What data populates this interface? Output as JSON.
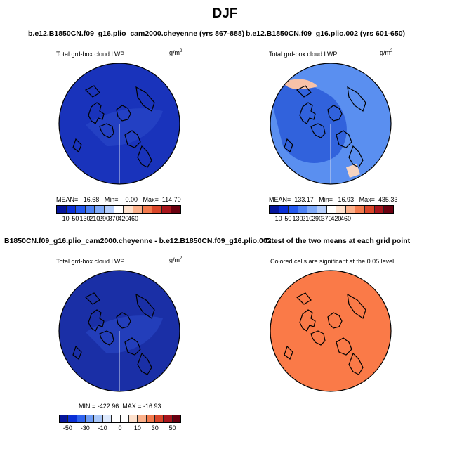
{
  "title": "DJF",
  "panels": [
    {
      "title": "b.e12.B1850CN.f09_g16.plio_cam2000.cheyenne (yrs 867-888)",
      "subtitle": "Total grd-box cloud LWP",
      "units": "g/m",
      "units_exp": "2",
      "stats": "MEAN=   16.68   Min=    0.00   Max=  114.70",
      "colorbar_labels": [
        "10",
        "50",
        "130",
        "210",
        "290",
        "370",
        "420",
        "460"
      ],
      "fill": "#1933bb"
    },
    {
      "title": "b.e12.B1850CN.f09_g16.plio.002 (yrs 601-650)",
      "subtitle": "Total grd-box cloud LWP",
      "units": "g/m",
      "units_exp": "2",
      "stats": "MEAN=  133.17   Min=   16.93   Max=  435.33",
      "colorbar_labels": [
        "10",
        "50",
        "130",
        "210",
        "290",
        "370",
        "420",
        "460"
      ],
      "fill": "#5a8ff0"
    },
    {
      "title": "B1850CN.f09_g16.plio_cam2000.cheyenne - b.e12.B1850CN.f09_g16.plio.002",
      "subtitle": "Total grd-box cloud LWP",
      "units": "g/m",
      "units_exp": "2",
      "stats": "MIN = -422.96  MAX = -16.93",
      "colorbar_labels": [
        "-50",
        "-30",
        "-10",
        "0",
        "10",
        "30",
        "50"
      ],
      "fill": "#1a2fa6"
    },
    {
      "title": "T-test of the two means at each grid point",
      "subtitle": "Colored cells are significant at the 0.05 level",
      "fill": "#fa7a48"
    }
  ],
  "colors": {
    "seq": [
      "#05159b",
      "#0a2fd6",
      "#2358ee",
      "#4d82f4",
      "#7faaf8",
      "#b3cdfb",
      "#ffffff",
      "#fde1cd",
      "#fbb08a",
      "#f27a4d",
      "#d9462a",
      "#a8151c",
      "#6a0010"
    ],
    "div": [
      "#05159b",
      "#0a2fd6",
      "#2f63ee",
      "#6f9df6",
      "#aac8fa",
      "#dde9fd",
      "#ffffff",
      "#ffffff",
      "#fde1cd",
      "#fbb08a",
      "#f27a4d",
      "#d9462a",
      "#a8151c",
      "#6a0010"
    ]
  }
}
